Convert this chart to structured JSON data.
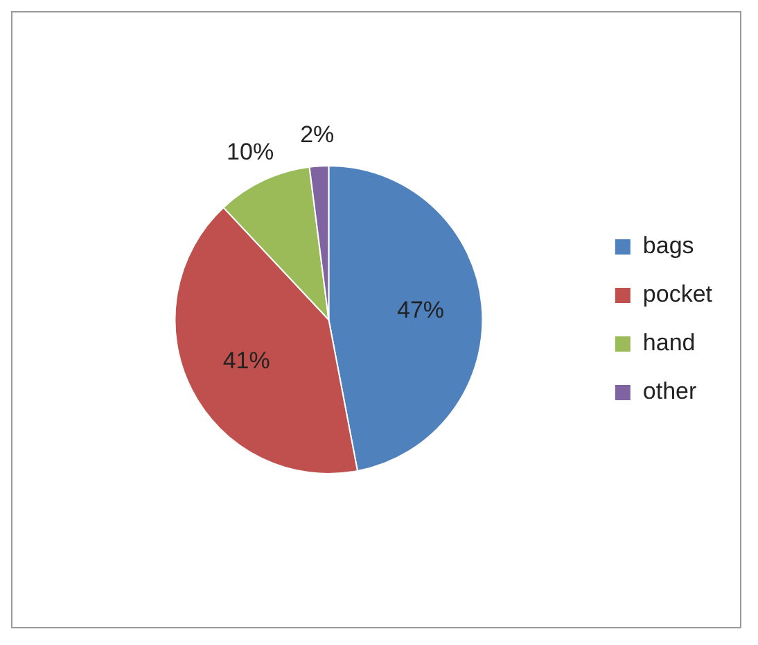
{
  "chart_data": {
    "type": "pie",
    "categories": [
      "bags",
      "pocket",
      "hand",
      "other"
    ],
    "values": [
      47,
      41,
      10,
      2
    ],
    "colors": [
      "#4f81bd",
      "#c0504d",
      "#9bbb59",
      "#8064a2"
    ],
    "value_labels": [
      "47%",
      "41%",
      "10%",
      "2%"
    ],
    "legend": "right"
  }
}
